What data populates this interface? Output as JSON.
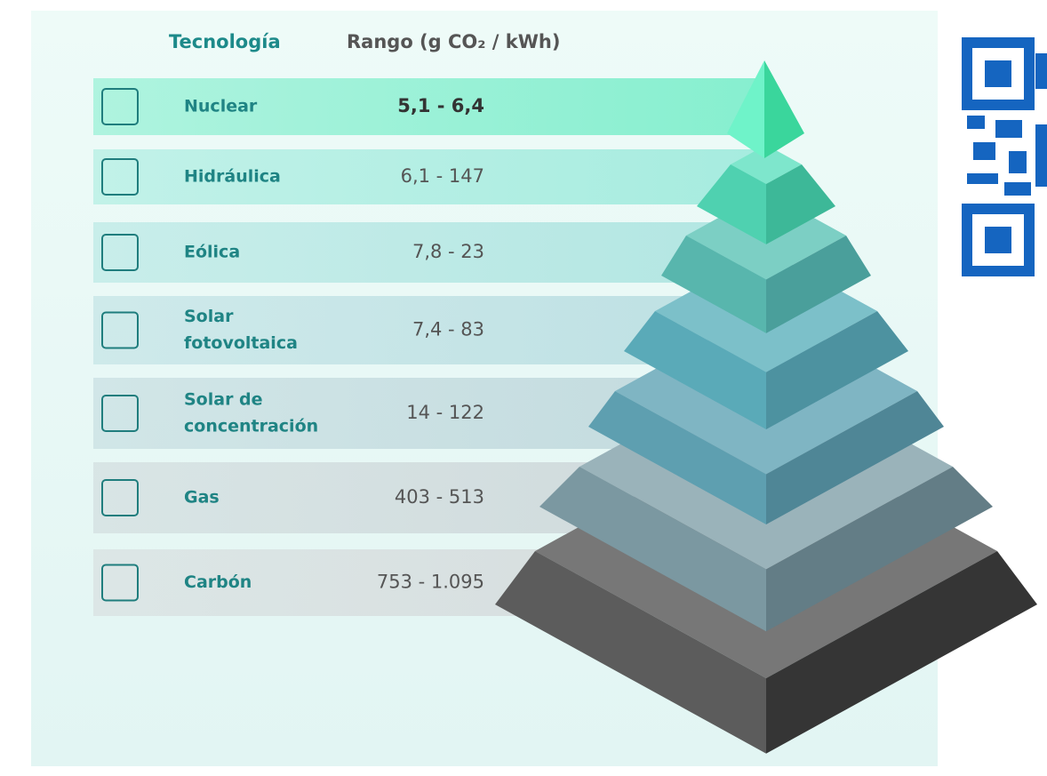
{
  "header": {
    "technology": "Tecnología",
    "range": "Rango (g CO₂ / kWh)"
  },
  "table": {
    "rows": [
      {
        "label": [
          "Nuclear"
        ],
        "range": "5,1 - 6,4"
      },
      {
        "label": [
          "Hidráulica"
        ],
        "range": "6,1 - 147"
      },
      {
        "label": [
          "Eólica"
        ],
        "range": "7,8 - 23"
      },
      {
        "label": [
          "Solar",
          "fotovoltaica"
        ],
        "range": "7,4 - 83"
      },
      {
        "label": [
          "Solar de",
          "concentración"
        ],
        "range": "14 - 122"
      },
      {
        "label": [
          "Gas"
        ],
        "range": "403 - 513"
      },
      {
        "label": [
          "Carbón"
        ],
        "range": "753 - 1.095"
      }
    ]
  }
}
